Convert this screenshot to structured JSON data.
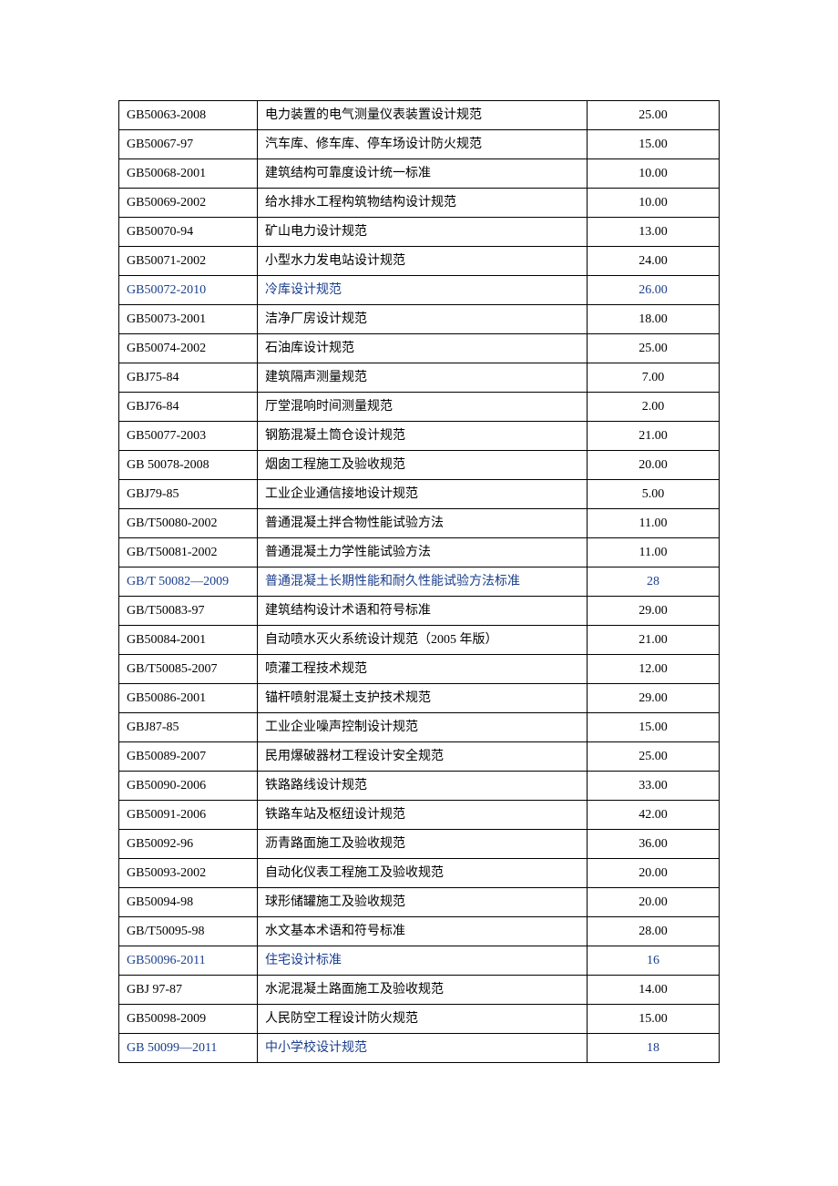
{
  "table": {
    "columns": {
      "widths": [
        152,
        360,
        145
      ]
    },
    "text_color": "#000000",
    "link_color": "#1a3e8c",
    "border_color": "#000000",
    "background_color": "#ffffff",
    "font_size": 14,
    "rows": [
      {
        "code": "GB50063-2008",
        "title": "电力装置的电气测量仪表装置设计规范",
        "price": "25.00",
        "highlighted": false
      },
      {
        "code": "GB50067-97",
        "title": "汽车库、修车库、停车场设计防火规范",
        "price": "15.00",
        "highlighted": false
      },
      {
        "code": "GB50068-2001",
        "title": "建筑结构可靠度设计统一标准",
        "price": "10.00",
        "highlighted": false
      },
      {
        "code": "GB50069-2002",
        "title": "给水排水工程构筑物结构设计规范",
        "price": "10.00",
        "highlighted": false
      },
      {
        "code": "GB50070-94",
        "title": "矿山电力设计规范",
        "price": "13.00",
        "highlighted": false
      },
      {
        "code": "GB50071-2002",
        "title": "小型水力发电站设计规范",
        "price": "24.00",
        "highlighted": false
      },
      {
        "code": "GB50072-2010",
        "title": "冷库设计规范",
        "price": "26.00",
        "highlighted": true
      },
      {
        "code": "GB50073-2001",
        "title": "洁净厂房设计规范",
        "price": "18.00",
        "highlighted": false
      },
      {
        "code": "GB50074-2002",
        "title": "石油库设计规范",
        "price": "25.00",
        "highlighted": false
      },
      {
        "code": "GBJ75-84",
        "title": "建筑隔声测量规范",
        "price": "7.00",
        "highlighted": false
      },
      {
        "code": "GBJ76-84",
        "title": "厅堂混响时间测量规范",
        "price": "2.00",
        "highlighted": false
      },
      {
        "code": "GB50077-2003",
        "title": "钢筋混凝土筒仓设计规范",
        "price": "21.00",
        "highlighted": false
      },
      {
        "code": "GB 50078-2008",
        "title": "烟囱工程施工及验收规范",
        "price": "20.00",
        "highlighted": false
      },
      {
        "code": "GBJ79-85",
        "title": "工业企业通信接地设计规范",
        "price": "5.00",
        "highlighted": false
      },
      {
        "code": "GB/T50080-2002",
        "title": "普通混凝土拌合物性能试验方法",
        "price": "11.00",
        "highlighted": false
      },
      {
        "code": "GB/T50081-2002",
        "title": "普通混凝土力学性能试验方法",
        "price": "11.00",
        "highlighted": false
      },
      {
        "code": "GB/T 50082—2009",
        "title": "普通混凝土长期性能和耐久性能试验方法标准",
        "price": "28",
        "highlighted": true
      },
      {
        "code": "GB/T50083-97",
        "title": "建筑结构设计术语和符号标准",
        "price": "29.00",
        "highlighted": false
      },
      {
        "code": "GB50084-2001",
        "title": "自动喷水灭火系统设计规范（2005 年版）",
        "price": "21.00",
        "highlighted": false
      },
      {
        "code": "GB/T50085-2007",
        "title": "喷灌工程技术规范",
        "price": "12.00",
        "highlighted": false
      },
      {
        "code": "GB50086-2001",
        "title": "锚杆喷射混凝土支护技术规范",
        "price": "29.00",
        "highlighted": false
      },
      {
        "code": "GBJ87-85",
        "title": "工业企业噪声控制设计规范",
        "price": "15.00",
        "highlighted": false
      },
      {
        "code": "GB50089-2007",
        "title": "民用爆破器材工程设计安全规范",
        "price": "25.00",
        "highlighted": false
      },
      {
        "code": "GB50090-2006",
        "title": "铁路路线设计规范",
        "price": "33.00",
        "highlighted": false
      },
      {
        "code": "GB50091-2006",
        "title": "铁路车站及枢纽设计规范",
        "price": "42.00",
        "highlighted": false
      },
      {
        "code": "GB50092-96",
        "title": "沥青路面施工及验收规范",
        "price": "36.00",
        "highlighted": false
      },
      {
        "code": "GB50093-2002",
        "title": "自动化仪表工程施工及验收规范",
        "price": "20.00",
        "highlighted": false
      },
      {
        "code": "GB50094-98",
        "title": "球形储罐施工及验收规范",
        "price": "20.00",
        "highlighted": false
      },
      {
        "code": "GB/T50095-98",
        "title": "水文基本术语和符号标准",
        "price": "28.00",
        "highlighted": false
      },
      {
        "code": "GB50096-2011",
        "title": "住宅设计标准",
        "price": "16",
        "highlighted": true
      },
      {
        "code": "GBJ 97-87",
        "title": "水泥混凝土路面施工及验收规范",
        "price": "14.00",
        "highlighted": false
      },
      {
        "code": "GB50098-2009",
        "title": "人民防空工程设计防火规范",
        "price": "15.00",
        "highlighted": false
      },
      {
        "code": "GB 50099—2011",
        "title": "中小学校设计规范",
        "price": "18",
        "highlighted": true
      }
    ]
  }
}
